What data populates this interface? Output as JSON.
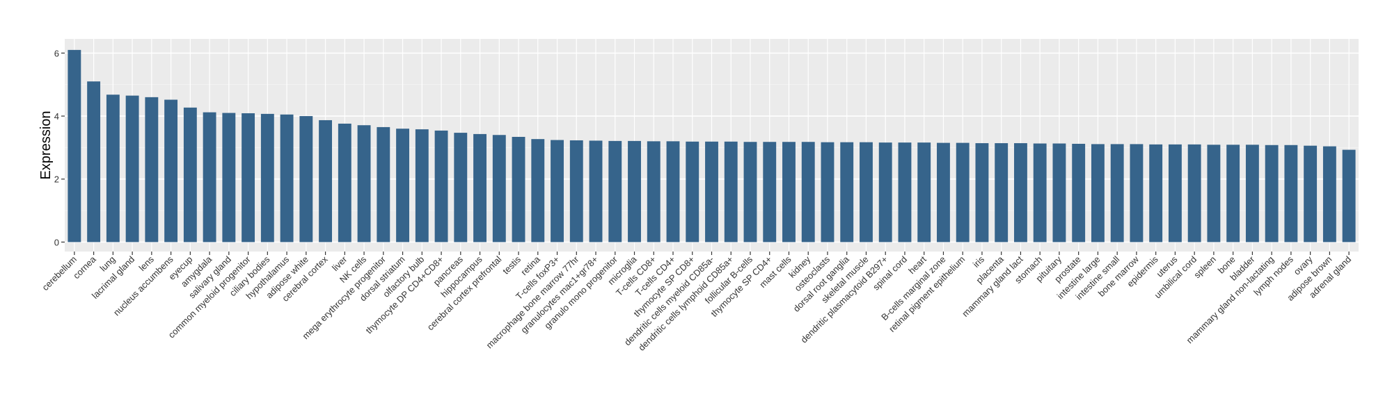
{
  "chart_data": {
    "type": "bar",
    "title": "",
    "xlabel": "",
    "ylabel": "Expression",
    "ylim": [
      -0.3,
      6.45
    ],
    "yticks": [
      0,
      2,
      4,
      6
    ],
    "grid": true,
    "legend": "none",
    "colors": {
      "bar": "#36648b",
      "panel": "#ebebeb",
      "grid_major": "#ffffff",
      "grid_minor": "#f5f5f5",
      "axis_text": "#333333"
    },
    "categories": [
      "cerebellum",
      "cornea",
      "lung",
      "lacrimal gland",
      "lens",
      "nucleus accumbens",
      "eyecup",
      "amygdala",
      "salivary gland",
      "common myeloid progenitor",
      "ciliary bodies",
      "hypothalamus",
      "adipose white",
      "cerebral cortex",
      "liver",
      "NK cells",
      "mega erythrocyte progenitor",
      "dorsal striatum",
      "olfactory bulb",
      "thymocyte DP CD4+CD8+",
      "pancreas",
      "hippocampus",
      "cerebral cortex prefrontal",
      "testis",
      "retina",
      "T-cells foxP3+",
      "macrophage bone marrow 77hr",
      "granulocytes mac1+gr78+",
      "granulo mono progenitor",
      "microglia",
      "T-cells CD8+",
      "T-cells CD4+",
      "thymocyte SP CD8+",
      "dendritic cells myeloid CD85a-",
      "dendritic cells lymphoid CD85a+",
      "follicular B-cells",
      "thymocyte SP CD4+",
      "mast cells",
      "kidney",
      "osteoclasts",
      "dorsal root ganglia",
      "skeletal muscle",
      "dendritic plasmacytoid B297+",
      "spinal cord",
      "heart",
      "B-cells marginal zone",
      "retinal pigment epithelium",
      "iris",
      "placenta",
      "mammary gland lact",
      "stomach",
      "pituitary",
      "prostate",
      "intestine large",
      "intestine small",
      "bone marrow",
      "epidermis",
      "uterus",
      "umbilical cord",
      "spleen",
      "bone",
      "bladder",
      "mammary gland non-lactating",
      "lymph nodes",
      "ovary",
      "adipose brown",
      "adrenal gland"
    ],
    "values": [
      6.1,
      5.1,
      4.68,
      4.65,
      4.6,
      4.52,
      4.27,
      4.12,
      4.1,
      4.09,
      4.07,
      4.05,
      4.0,
      3.87,
      3.76,
      3.71,
      3.65,
      3.6,
      3.58,
      3.54,
      3.47,
      3.43,
      3.4,
      3.34,
      3.27,
      3.24,
      3.23,
      3.22,
      3.21,
      3.21,
      3.2,
      3.2,
      3.19,
      3.19,
      3.19,
      3.18,
      3.18,
      3.18,
      3.18,
      3.17,
      3.17,
      3.17,
      3.16,
      3.16,
      3.16,
      3.15,
      3.15,
      3.14,
      3.14,
      3.14,
      3.13,
      3.13,
      3.12,
      3.11,
      3.11,
      3.11,
      3.1,
      3.1,
      3.1,
      3.09,
      3.09,
      3.09,
      3.08,
      3.08,
      3.06,
      3.04,
      2.93
    ]
  }
}
